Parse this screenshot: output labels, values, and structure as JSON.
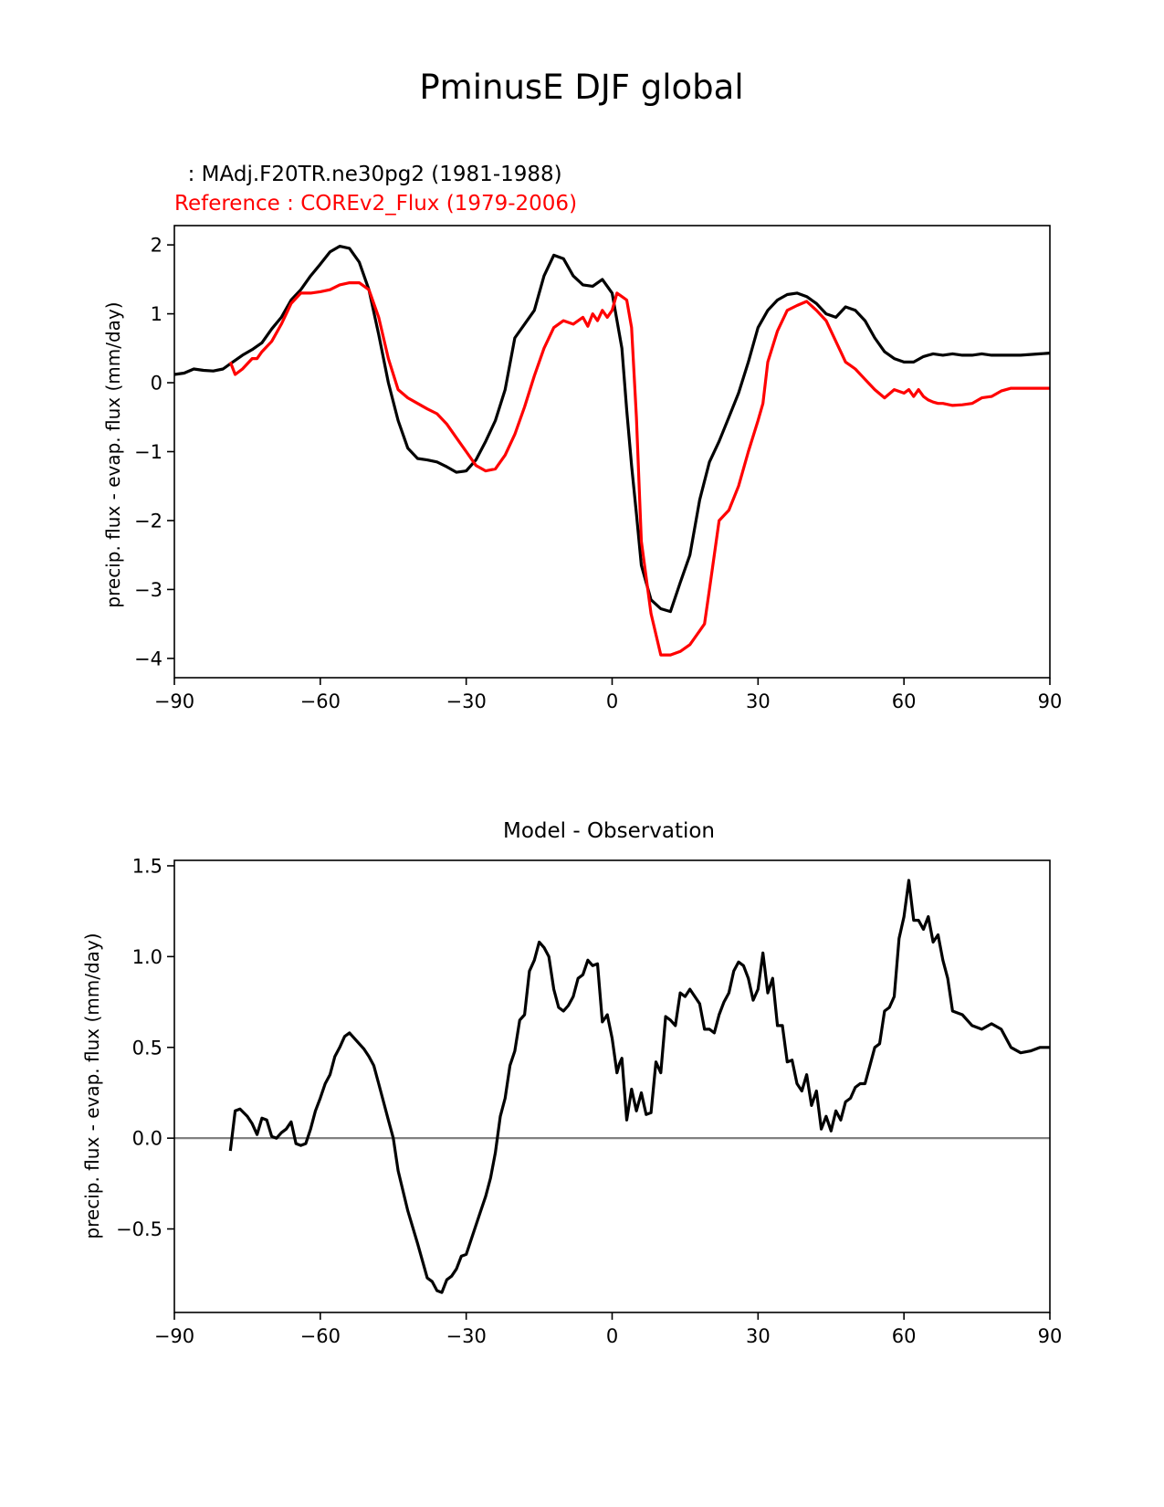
{
  "figure_title": "PminusE DJF global",
  "chart_data": [
    {
      "type": "line",
      "test_label": "  : MAdj.F20TR.ne30pg2 (1981-1988)",
      "ref_label": "Reference : COREv2_Flux (1979-2006)",
      "ylabel": "precip. flux - evap. flux (mm/day)",
      "xlabel": "",
      "xlim": [
        -90,
        90
      ],
      "ylim": [
        -4.28,
        2.28
      ],
      "xticks": [
        -90,
        -60,
        -30,
        0,
        30,
        60,
        90
      ],
      "xtick_labels": [
        "−90",
        "−60",
        "−30",
        "0",
        "30",
        "60",
        "90"
      ],
      "yticks": [
        -4,
        -3,
        -2,
        -1,
        0,
        1,
        2
      ],
      "ytick_labels": [
        "−4",
        "−3",
        "−2",
        "−1",
        "0",
        "1",
        "2"
      ],
      "series": [
        {
          "name": "MAdj.F20TR.ne30pg2 (1981-1988)",
          "color": "#000000",
          "x": [
            -90,
            -88,
            -86,
            -84,
            -82,
            -80,
            -78,
            -76,
            -74,
            -72,
            -70,
            -68,
            -66,
            -64,
            -62,
            -60,
            -58,
            -56,
            -54,
            -52,
            -50,
            -48,
            -46,
            -44,
            -42,
            -40,
            -38,
            -36,
            -34,
            -32,
            -30,
            -28,
            -26,
            -24,
            -22,
            -20,
            -18,
            -16,
            -14,
            -12,
            -10,
            -8,
            -6,
            -4,
            -2,
            0,
            2,
            3,
            4,
            5,
            6,
            8,
            10,
            12,
            14,
            16,
            18,
            20,
            22,
            24,
            26,
            28,
            30,
            32,
            34,
            36,
            38,
            40,
            42,
            44,
            46,
            48,
            50,
            52,
            54,
            56,
            58,
            60,
            62,
            64,
            66,
            68,
            70,
            72,
            74,
            76,
            78,
            80,
            82,
            84,
            86,
            88,
            90
          ],
          "y": [
            0.12,
            0.14,
            0.2,
            0.18,
            0.17,
            0.2,
            0.3,
            0.4,
            0.48,
            0.58,
            0.78,
            0.95,
            1.2,
            1.35,
            1.55,
            1.72,
            1.9,
            1.98,
            1.95,
            1.75,
            1.35,
            0.7,
            0.0,
            -0.55,
            -0.95,
            -1.1,
            -1.12,
            -1.15,
            -1.22,
            -1.3,
            -1.28,
            -1.12,
            -0.85,
            -0.55,
            -0.1,
            0.65,
            0.85,
            1.05,
            1.55,
            1.85,
            1.8,
            1.55,
            1.42,
            1.4,
            1.5,
            1.3,
            0.5,
            -0.4,
            -1.2,
            -1.9,
            -2.65,
            -3.15,
            -3.28,
            -3.32,
            -2.9,
            -2.5,
            -1.7,
            -1.15,
            -0.85,
            -0.5,
            -0.15,
            0.3,
            0.8,
            1.05,
            1.2,
            1.28,
            1.3,
            1.25,
            1.15,
            1.0,
            0.95,
            1.1,
            1.05,
            0.9,
            0.65,
            0.45,
            0.35,
            0.3,
            0.3,
            0.38,
            0.42,
            0.4,
            0.42,
            0.4,
            0.4,
            0.42,
            0.4,
            0.4,
            0.4,
            0.4,
            0.41,
            0.42,
            0.43
          ]
        },
        {
          "name": "COREv2_Flux (1979-2006)",
          "color": "#ff0000",
          "x": [
            -78.5,
            -77.5,
            -76,
            -74,
            -73,
            -72,
            -70,
            -68,
            -66,
            -64,
            -62,
            -60,
            -58,
            -56,
            -54,
            -52,
            -50,
            -48,
            -46,
            -44,
            -42,
            -40,
            -38,
            -36,
            -34,
            -32,
            -30,
            -28,
            -26,
            -24,
            -22,
            -20,
            -18,
            -16,
            -14,
            -12,
            -10,
            -8,
            -6,
            -5,
            -4,
            -3,
            -2,
            -1,
            0,
            1,
            2,
            3,
            4,
            5,
            6,
            8,
            10,
            12,
            14,
            15,
            16,
            18,
            19,
            20,
            22,
            24,
            26,
            28,
            30,
            31,
            32,
            34,
            36,
            38,
            40,
            42,
            44,
            46,
            47,
            48,
            49,
            50,
            52,
            54,
            56,
            58,
            60,
            61,
            62,
            63,
            64,
            65,
            66,
            67,
            68,
            70,
            72,
            74,
            76,
            78,
            80,
            82,
            84,
            86,
            88,
            90
          ],
          "y": [
            0.3,
            0.12,
            0.2,
            0.35,
            0.35,
            0.45,
            0.6,
            0.85,
            1.15,
            1.3,
            1.3,
            1.32,
            1.35,
            1.42,
            1.45,
            1.45,
            1.35,
            0.95,
            0.35,
            -0.1,
            -0.22,
            -0.3,
            -0.38,
            -0.45,
            -0.6,
            -0.8,
            -1.0,
            -1.2,
            -1.28,
            -1.25,
            -1.05,
            -0.75,
            -0.35,
            0.1,
            0.5,
            0.8,
            0.9,
            0.85,
            0.95,
            0.82,
            1.0,
            0.9,
            1.05,
            0.95,
            1.05,
            1.3,
            1.25,
            1.2,
            0.8,
            -0.5,
            -2.3,
            -3.35,
            -3.95,
            -3.95,
            -3.9,
            -3.85,
            -3.8,
            -3.6,
            -3.5,
            -3.0,
            -2.0,
            -1.85,
            -1.5,
            -1.0,
            -0.55,
            -0.3,
            0.3,
            0.75,
            1.05,
            1.12,
            1.18,
            1.05,
            0.9,
            0.6,
            0.45,
            0.3,
            0.25,
            0.2,
            0.05,
            -0.1,
            -0.22,
            -0.1,
            -0.15,
            -0.1,
            -0.2,
            -0.1,
            -0.2,
            -0.25,
            -0.28,
            -0.3,
            -0.3,
            -0.33,
            -0.32,
            -0.3,
            -0.22,
            -0.2,
            -0.12,
            -0.08,
            -0.08,
            -0.08,
            -0.08,
            -0.08
          ]
        }
      ]
    },
    {
      "type": "line",
      "title": "Model - Observation",
      "ylabel": "precip. flux - evap. flux (mm/day)",
      "xlabel": "",
      "xlim": [
        -90,
        90
      ],
      "ylim": [
        -0.96,
        1.53
      ],
      "xticks": [
        -90,
        -60,
        -30,
        0,
        30,
        60,
        90
      ],
      "xtick_labels": [
        "−90",
        "−60",
        "−30",
        "0",
        "30",
        "60",
        "90"
      ],
      "yticks": [
        -0.5,
        0.0,
        0.5,
        1.0,
        1.5
      ],
      "ytick_labels": [
        "−0.5",
        "0.0",
        "0.5",
        "1.0",
        "1.5"
      ],
      "zero_line": {
        "y": 0.0,
        "color": "#808080"
      },
      "series": [
        {
          "name": "Model - Observation",
          "color": "#000000",
          "x": [
            -78.5,
            -77.5,
            -76.5,
            -75,
            -74,
            -73,
            -72,
            -71,
            -70,
            -69,
            -68,
            -67,
            -66,
            -65,
            -64,
            -63,
            -62,
            -61,
            -60,
            -59,
            -58,
            -57,
            -56,
            -55,
            -54,
            -53,
            -52,
            -51,
            -50,
            -49,
            -48,
            -47,
            -46,
            -45,
            -44,
            -42,
            -40,
            -38,
            -37,
            -36,
            -35,
            -34,
            -33,
            -32,
            -31,
            -30,
            -29,
            -28,
            -27,
            -26,
            -25,
            -24,
            -23,
            -22,
            -21,
            -20,
            -19,
            -18,
            -17,
            -16,
            -15,
            -14,
            -13,
            -12,
            -11,
            -10,
            -9,
            -8,
            -7,
            -6,
            -5,
            -4,
            -3,
            -2,
            -1.5,
            -1,
            0,
            1,
            1.5,
            2,
            3,
            4,
            5,
            6,
            7,
            8,
            9,
            10,
            11,
            12,
            13,
            14,
            15,
            16,
            17,
            18,
            19,
            20,
            21,
            22,
            23,
            24,
            25,
            26,
            27,
            28,
            29,
            30,
            31,
            32,
            33,
            34,
            35,
            36,
            37,
            38,
            39,
            40,
            41,
            42,
            43,
            44,
            45,
            46,
            47,
            48,
            49,
            50,
            51,
            52,
            53,
            54,
            55,
            56,
            57,
            58,
            59,
            60,
            61,
            62,
            63,
            64,
            65,
            66,
            67,
            68,
            69,
            70,
            72,
            74,
            76,
            78,
            80,
            82,
            84,
            86,
            88,
            90
          ],
          "y": [
            -0.07,
            0.15,
            0.16,
            0.12,
            0.08,
            0.02,
            0.11,
            0.1,
            0.01,
            0.0,
            0.03,
            0.05,
            0.09,
            -0.03,
            -0.04,
            -0.03,
            0.05,
            0.15,
            0.22,
            0.3,
            0.35,
            0.45,
            0.5,
            0.56,
            0.58,
            0.55,
            0.52,
            0.49,
            0.45,
            0.4,
            0.3,
            0.2,
            0.1,
            0.0,
            -0.18,
            -0.4,
            -0.58,
            -0.77,
            -0.79,
            -0.84,
            -0.85,
            -0.78,
            -0.76,
            -0.72,
            -0.65,
            -0.64,
            -0.56,
            -0.48,
            -0.4,
            -0.32,
            -0.22,
            -0.08,
            0.12,
            0.22,
            0.4,
            0.48,
            0.65,
            0.68,
            0.92,
            0.98,
            1.08,
            1.05,
            1.0,
            0.82,
            0.72,
            0.7,
            0.73,
            0.78,
            0.88,
            0.9,
            0.98,
            0.95,
            0.96,
            0.64,
            0.66,
            0.68,
            0.55,
            0.36,
            0.41,
            0.44,
            0.1,
            0.27,
            0.15,
            0.25,
            0.13,
            0.14,
            0.42,
            0.36,
            0.67,
            0.65,
            0.62,
            0.8,
            0.78,
            0.82,
            0.78,
            0.74,
            0.6,
            0.6,
            0.58,
            0.68,
            0.75,
            0.8,
            0.92,
            0.97,
            0.95,
            0.88,
            0.76,
            0.82,
            1.02,
            0.8,
            0.88,
            0.62,
            0.62,
            0.42,
            0.43,
            0.3,
            0.26,
            0.35,
            0.18,
            0.26,
            0.05,
            0.12,
            0.04,
            0.15,
            0.1,
            0.2,
            0.22,
            0.28,
            0.3,
            0.3,
            0.4,
            0.5,
            0.52,
            0.7,
            0.72,
            0.78,
            1.1,
            1.22,
            1.42,
            1.2,
            1.2,
            1.15,
            1.22,
            1.08,
            1.12,
            0.98,
            0.88,
            0.7,
            0.68,
            0.62,
            0.6,
            0.63,
            0.6,
            0.5,
            0.47,
            0.48,
            0.5,
            0.5
          ]
        }
      ]
    }
  ]
}
